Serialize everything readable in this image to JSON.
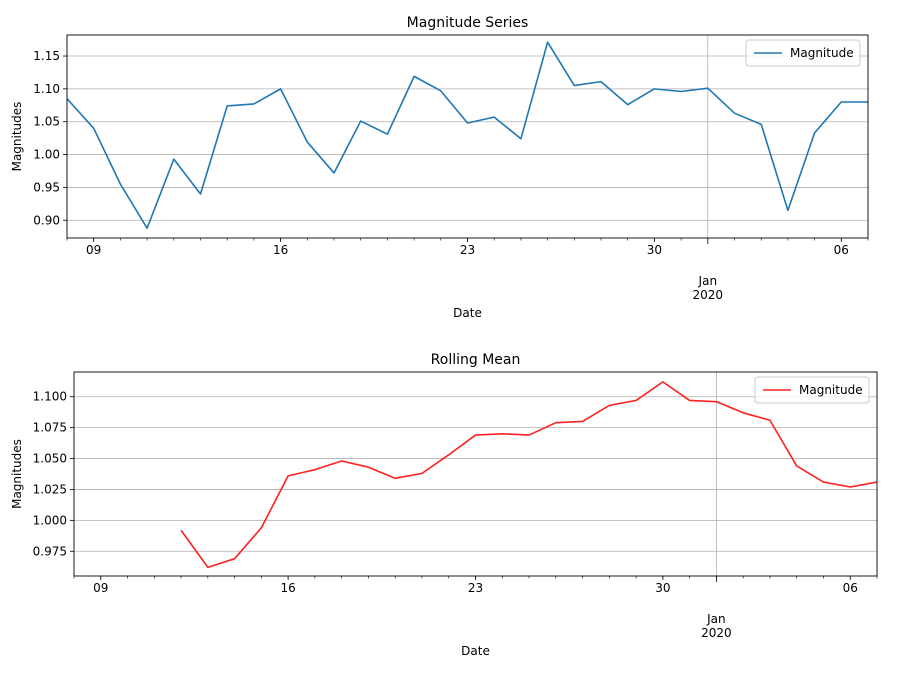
{
  "chart_data": [
    {
      "type": "line",
      "title": "Magnitude Series",
      "xlabel": "Date",
      "ylabel": "Magnitudes",
      "x": [
        "2019-12-08",
        "2019-12-09",
        "2019-12-10",
        "2019-12-11",
        "2019-12-12",
        "2019-12-13",
        "2019-12-14",
        "2019-12-15",
        "2019-12-16",
        "2019-12-17",
        "2019-12-18",
        "2019-12-19",
        "2019-12-20",
        "2019-12-21",
        "2019-12-22",
        "2019-12-23",
        "2019-12-24",
        "2019-12-25",
        "2019-12-26",
        "2019-12-27",
        "2019-12-28",
        "2019-12-29",
        "2019-12-30",
        "2019-12-31",
        "2020-01-01",
        "2020-01-02",
        "2020-01-03",
        "2020-01-04",
        "2020-01-05",
        "2020-01-06",
        "2020-01-07"
      ],
      "series": [
        {
          "name": "Magnitude",
          "color": "#1f77b4",
          "values": [
            1.085,
            1.04,
            0.955,
            0.888,
            0.993,
            0.94,
            1.074,
            1.077,
            1.1,
            1.019,
            0.972,
            1.051,
            1.031,
            1.119,
            1.097,
            1.048,
            1.057,
            1.024,
            1.171,
            1.105,
            1.111,
            1.076,
            1.1,
            1.096,
            1.101,
            1.063,
            1.046,
            0.915,
            1.033,
            1.08,
            1.08
          ]
        }
      ],
      "xlim": [
        "2019-12-08",
        "2020-01-07"
      ],
      "ylim": [
        0.873,
        1.182
      ],
      "yticks": [
        0.9,
        0.95,
        1.0,
        1.05,
        1.1,
        1.15
      ],
      "ytick_labels": [
        "0.90",
        "0.95",
        "1.00",
        "1.05",
        "1.10",
        "1.15"
      ],
      "xticks": [
        {
          "x": "2019-12-09",
          "label": "09"
        },
        {
          "x": "2019-12-16",
          "label": "16"
        },
        {
          "x": "2019-12-23",
          "label": "23"
        },
        {
          "x": "2019-12-30",
          "label": "30"
        },
        {
          "x": "2020-01-06",
          "label": "06"
        }
      ],
      "month_tick": {
        "x": "2020-01-01",
        "label_line1": "Jan",
        "label_line2": "2020"
      },
      "grid": true,
      "legend": "upper right"
    },
    {
      "type": "line",
      "title": "Rolling Mean",
      "xlabel": "Date",
      "ylabel": "Magnitudes",
      "x": [
        "2019-12-08",
        "2019-12-09",
        "2019-12-10",
        "2019-12-11",
        "2019-12-12",
        "2019-12-13",
        "2019-12-14",
        "2019-12-15",
        "2019-12-16",
        "2019-12-17",
        "2019-12-18",
        "2019-12-19",
        "2019-12-20",
        "2019-12-21",
        "2019-12-22",
        "2019-12-23",
        "2019-12-24",
        "2019-12-25",
        "2019-12-26",
        "2019-12-27",
        "2019-12-28",
        "2019-12-29",
        "2019-12-30",
        "2019-12-31",
        "2020-01-01",
        "2020-01-02",
        "2020-01-03",
        "2020-01-04",
        "2020-01-05",
        "2020-01-06",
        "2020-01-07"
      ],
      "series": [
        {
          "name": "Magnitude",
          "color": "#ff2020",
          "values": [
            null,
            null,
            null,
            null,
            0.992,
            0.962,
            0.969,
            0.994,
            1.036,
            1.041,
            1.048,
            1.043,
            1.034,
            1.038,
            1.053,
            1.069,
            1.07,
            1.069,
            1.079,
            1.08,
            1.093,
            1.097,
            1.112,
            1.097,
            1.096,
            1.087,
            1.081,
            1.044,
            1.031,
            1.027,
            1.031
          ]
        }
      ],
      "xlim": [
        "2019-12-08",
        "2020-01-07"
      ],
      "ylim": [
        0.955,
        1.12
      ],
      "yticks": [
        0.975,
        1.0,
        1.025,
        1.05,
        1.075,
        1.1
      ],
      "ytick_labels": [
        "0.975",
        "1.000",
        "1.025",
        "1.050",
        "1.075",
        "1.100"
      ],
      "xticks": [
        {
          "x": "2019-12-09",
          "label": "09"
        },
        {
          "x": "2019-12-16",
          "label": "16"
        },
        {
          "x": "2019-12-23",
          "label": "23"
        },
        {
          "x": "2019-12-30",
          "label": "30"
        },
        {
          "x": "2020-01-06",
          "label": "06"
        }
      ],
      "month_tick": {
        "x": "2020-01-01",
        "label_line1": "Jan",
        "label_line2": "2020"
      },
      "grid": true,
      "legend": "upper right"
    }
  ]
}
